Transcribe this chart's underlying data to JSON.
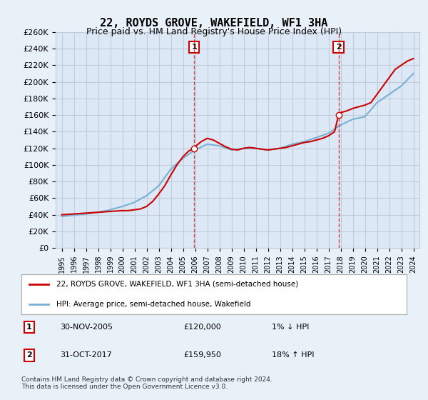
{
  "title": "22, ROYDS GROVE, WAKEFIELD, WF1 3HA",
  "subtitle": "Price paid vs. HM Land Registry's House Price Index (HPI)",
  "legend_label1": "22, ROYDS GROVE, WAKEFIELD, WF1 3HA (semi-detached house)",
  "legend_label2": "HPI: Average price, semi-detached house, Wakefield",
  "footnote": "Contains HM Land Registry data © Crown copyright and database right 2024.\nThis data is licensed under the Open Government Licence v3.0.",
  "transaction1_label": "1",
  "transaction1_date": "30-NOV-2005",
  "transaction1_price": "£120,000",
  "transaction1_hpi": "1% ↓ HPI",
  "transaction1_year": 2005.92,
  "transaction1_value": 120000,
  "transaction2_label": "2",
  "transaction2_date": "31-OCT-2017",
  "transaction2_price": "£159,950",
  "transaction2_hpi": "18% ↑ HPI",
  "transaction2_year": 2017.83,
  "transaction2_value": 159950,
  "background_color": "#e8f0f8",
  "plot_bg_color": "#dce8f5",
  "red_color": "#cc0000",
  "blue_color": "#7ab0d4",
  "vline_color": "#cc0000",
  "grid_color": "#c0ccd8",
  "ylim": [
    0,
    260000
  ],
  "yticks": [
    0,
    20000,
    40000,
    60000,
    80000,
    100000,
    120000,
    140000,
    160000,
    180000,
    200000,
    220000,
    240000,
    260000
  ],
  "xlim_start": 1994.5,
  "xlim_end": 2024.5,
  "hpi_years": [
    1995,
    1996,
    1997,
    1998,
    1999,
    2000,
    2001,
    2002,
    2003,
    2004,
    2005,
    2006,
    2007,
    2008,
    2009,
    2010,
    2011,
    2012,
    2013,
    2014,
    2015,
    2016,
    2017,
    2018,
    2019,
    2020,
    2021,
    2022,
    2023,
    2024
  ],
  "hpi_values": [
    38000,
    39500,
    41000,
    43000,
    46000,
    50000,
    55000,
    63000,
    75000,
    95000,
    108000,
    118000,
    125000,
    123000,
    118000,
    120000,
    120000,
    118000,
    120000,
    125000,
    128000,
    133000,
    138000,
    148000,
    155000,
    158000,
    175000,
    185000,
    195000,
    210000
  ],
  "price_years": [
    1995.0,
    1995.5,
    1996.0,
    1996.5,
    1997.0,
    1997.5,
    1998.0,
    1998.5,
    1999.0,
    1999.5,
    2000.0,
    2000.5,
    2001.0,
    2001.5,
    2002.0,
    2002.5,
    2003.0,
    2003.5,
    2004.0,
    2004.5,
    2005.0,
    2005.5,
    2005.92,
    2006.0,
    2006.5,
    2007.0,
    2007.5,
    2008.0,
    2008.5,
    2009.0,
    2009.5,
    2010.0,
    2010.5,
    2011.0,
    2011.5,
    2012.0,
    2012.5,
    2013.0,
    2013.5,
    2014.0,
    2014.5,
    2015.0,
    2015.5,
    2016.0,
    2016.5,
    2017.0,
    2017.5,
    2017.83,
    2018.0,
    2018.5,
    2019.0,
    2019.5,
    2020.0,
    2020.5,
    2021.0,
    2021.5,
    2022.0,
    2022.5,
    2023.0,
    2023.5,
    2024.0
  ],
  "price_values": [
    40000,
    40500,
    41000,
    41500,
    42000,
    42500,
    43000,
    43500,
    44000,
    44500,
    45000,
    45000,
    46000,
    47000,
    50000,
    56000,
    65000,
    75000,
    88000,
    100000,
    110000,
    117000,
    120000,
    122000,
    128000,
    132000,
    130000,
    126000,
    122000,
    119000,
    118000,
    120000,
    121000,
    120000,
    119000,
    118000,
    119000,
    120000,
    121000,
    123000,
    125000,
    127000,
    128000,
    130000,
    132000,
    135000,
    140000,
    159950,
    163000,
    165000,
    168000,
    170000,
    172000,
    175000,
    185000,
    195000,
    205000,
    215000,
    220000,
    225000,
    228000
  ]
}
